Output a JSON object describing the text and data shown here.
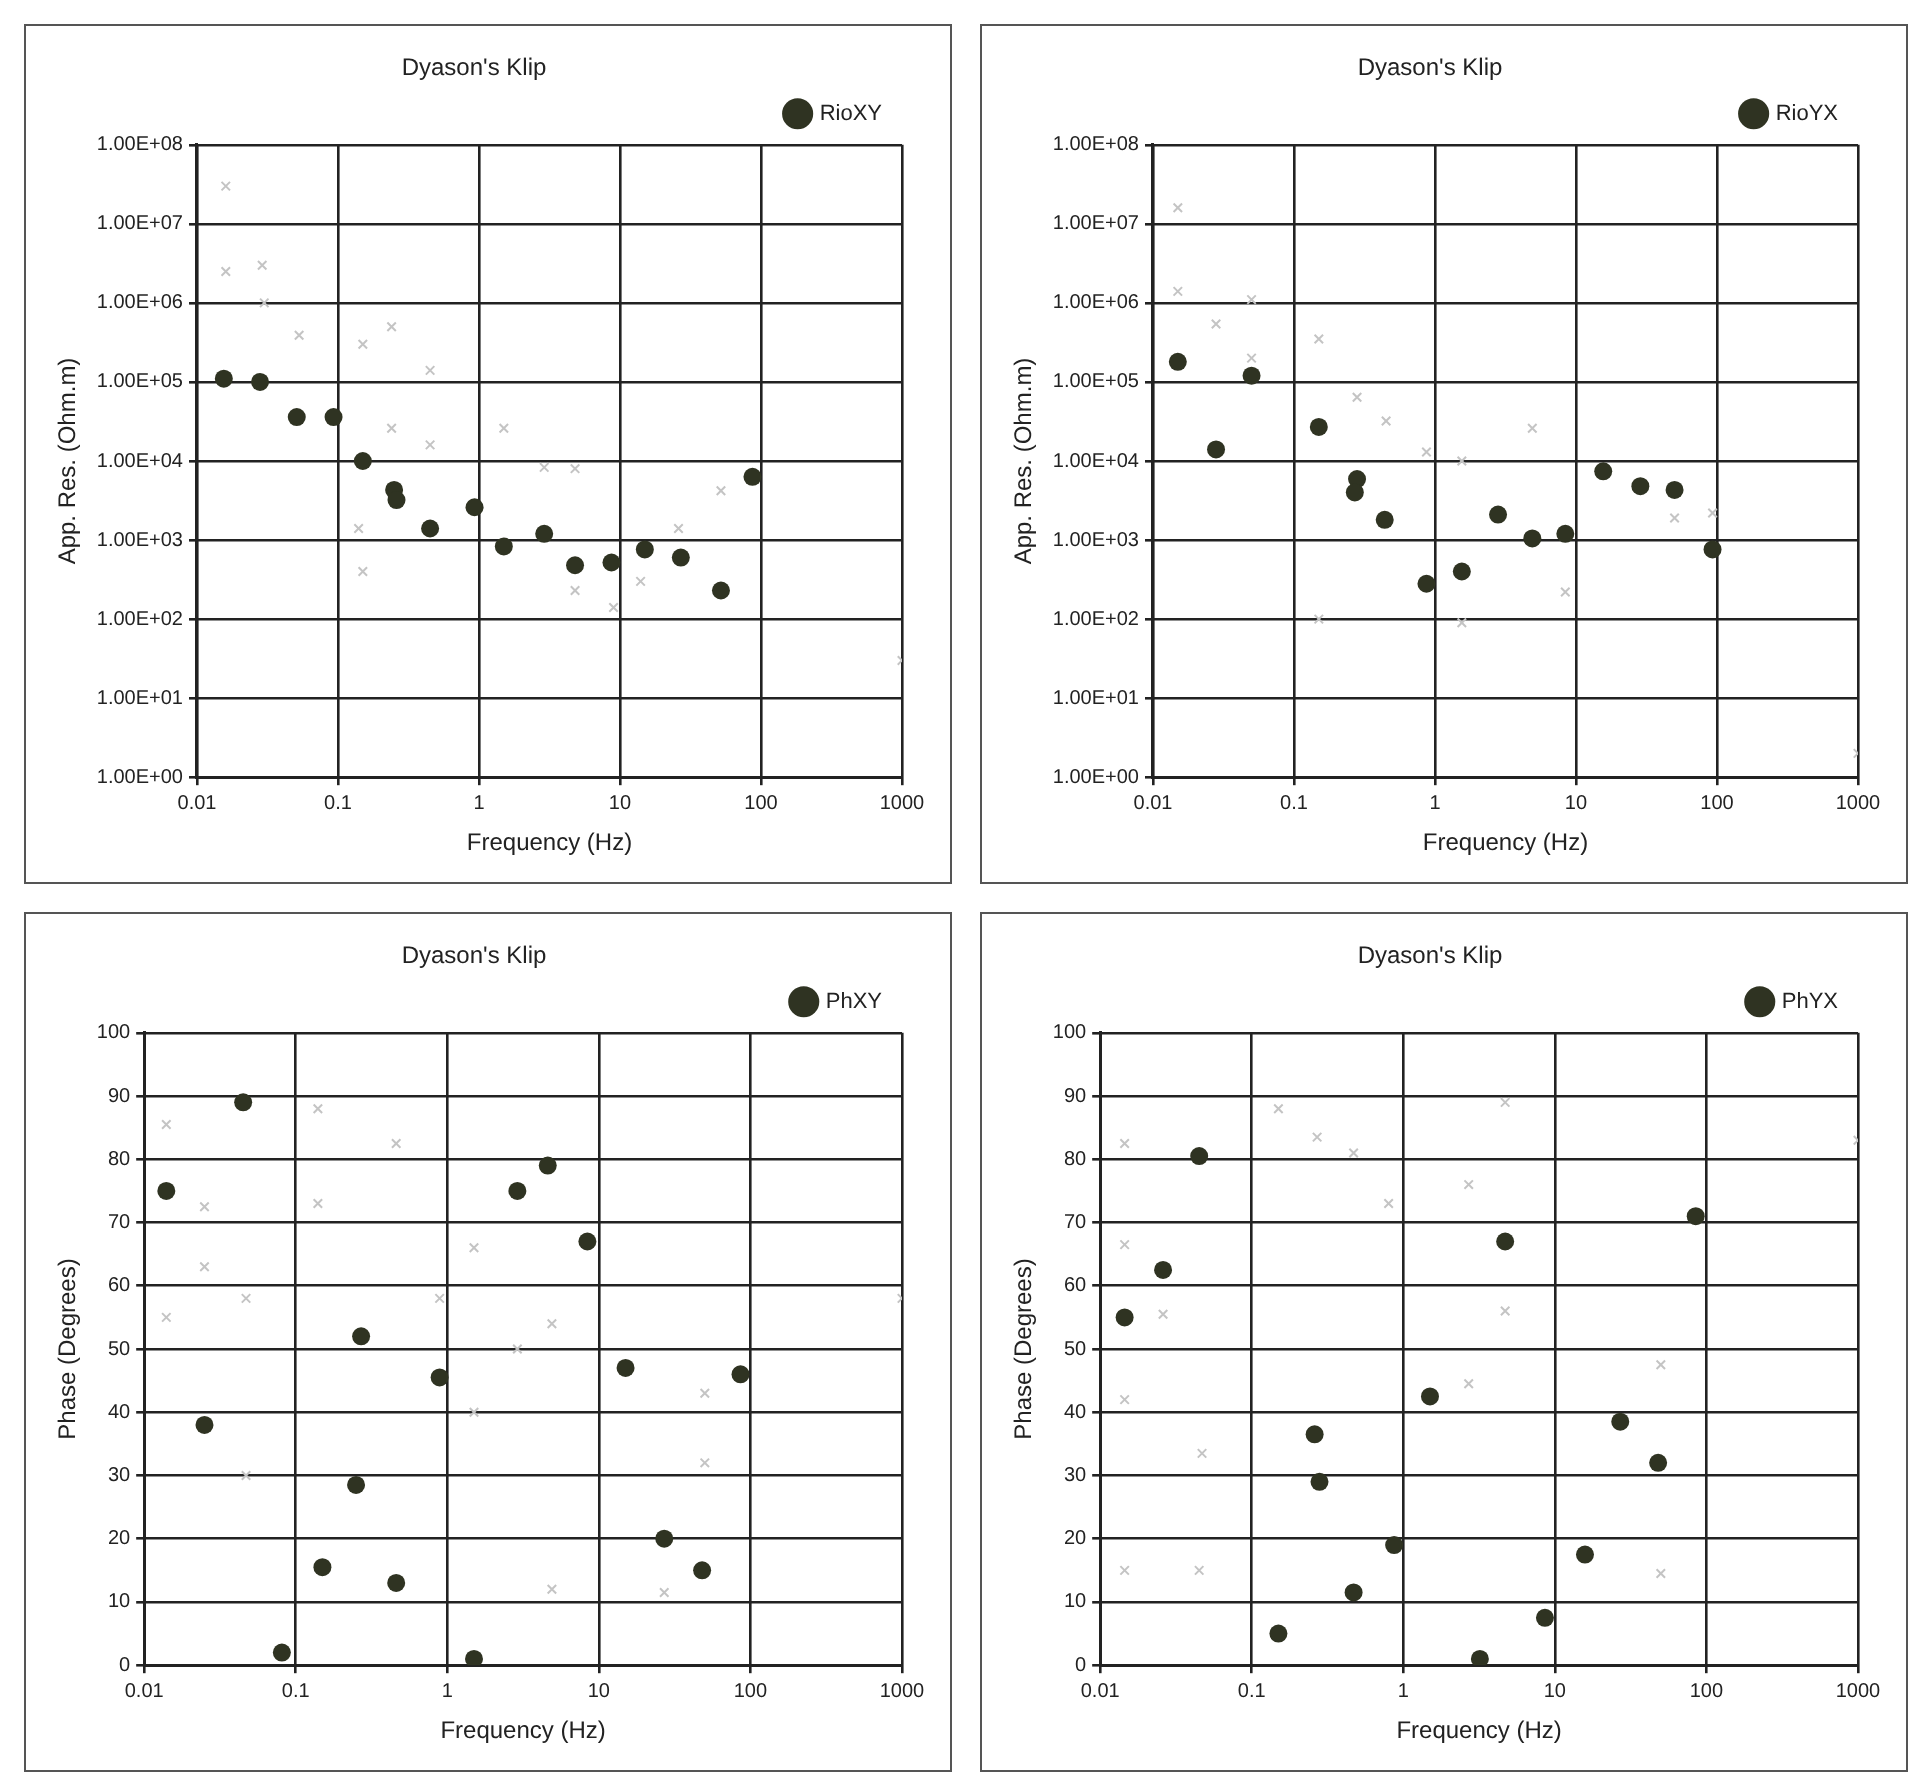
{
  "chart_data": [
    {
      "type": "scatter",
      "title": "Dyason's Klip",
      "xlabel": "Frequency (Hz)",
      "ylabel": "App. Res. (Ohm.m)",
      "log": "xy",
      "grid": true,
      "legend": "top right",
      "xlim": [
        0.01,
        1000
      ],
      "xticks": [
        0.01,
        0.1,
        1,
        10,
        100,
        1000
      ],
      "ylim": [
        1,
        100000000
      ],
      "yticks": [
        {
          "value": 1,
          "label": "1.00E+00"
        },
        {
          "value": 10,
          "label": "1.00E+01"
        },
        {
          "value": 100,
          "label": "1.00E+02"
        },
        {
          "value": 1000,
          "label": "1.00E+03"
        },
        {
          "value": 10000,
          "label": "1.00E+04"
        },
        {
          "value": 100000,
          "label": "1.00E+05"
        },
        {
          "value": 1000000,
          "label": "1.00E+06"
        },
        {
          "value": 10000000,
          "label": "1.00E+07"
        },
        {
          "value": 100000000,
          "label": "1.00E+08"
        }
      ],
      "series": [
        {
          "color": "#c4c4c4",
          "marker": "cross",
          "x": [
            0.016,
            0.016,
            0.029,
            0.03,
            0.053,
            0.15,
            0.24,
            0.45,
            0.24,
            0.45,
            1.5,
            2.9,
            4.8,
            0.14,
            0.15,
            4.8,
            9,
            14,
            26,
            52,
            1000
          ],
          "values": [
            30000000,
            2500000,
            3000000,
            1000000,
            390000,
            300000,
            500000,
            140000,
            26000,
            16000,
            26000,
            8300,
            8000,
            1400,
            400,
            230,
            140,
            300,
            1400,
            4200,
            30
          ]
        },
        {
          "name": "RioXY",
          "color": "#2f3322",
          "marker": "circle",
          "x": [
            0.0155,
            0.028,
            0.051,
            0.093,
            0.15,
            0.25,
            0.26,
            0.45,
            0.93,
            1.5,
            2.9,
            4.8,
            8.7,
            15,
            27,
            52,
            87
          ],
          "values": [
            110000,
            100000,
            36000,
            36000,
            10000,
            4300,
            3200,
            1400,
            2600,
            830,
            1200,
            480,
            520,
            760,
            600,
            230,
            6300
          ]
        }
      ]
    },
    {
      "type": "scatter",
      "title": "Dyason's Klip",
      "xlabel": "Frequency (Hz)",
      "ylabel": "App. Res. (Ohm.m)",
      "log": "xy",
      "grid": true,
      "legend": "top right",
      "xlim": [
        0.01,
        1000
      ],
      "xticks": [
        0.01,
        0.1,
        1,
        10,
        100,
        1000
      ],
      "ylim": [
        1,
        100000000
      ],
      "yticks": [
        {
          "value": 1,
          "label": "1.00E+00"
        },
        {
          "value": 10,
          "label": "1.00E+01"
        },
        {
          "value": 100,
          "label": "1.00E+02"
        },
        {
          "value": 1000,
          "label": "1.00E+03"
        },
        {
          "value": 10000,
          "label": "1.00E+04"
        },
        {
          "value": 100000,
          "label": "1.00E+05"
        },
        {
          "value": 1000000,
          "label": "1.00E+06"
        },
        {
          "value": 10000000,
          "label": "1.00E+07"
        },
        {
          "value": 100000000,
          "label": "1.00E+08"
        }
      ],
      "series": [
        {
          "color": "#c4c4c4",
          "marker": "cross",
          "x": [
            0.015,
            0.015,
            0.028,
            0.05,
            0.05,
            0.15,
            0.15,
            0.28,
            0.45,
            0.87,
            1.55,
            1.55,
            4.9,
            8.4,
            50,
            93,
            1000
          ],
          "values": [
            16000000,
            1400000,
            540000,
            1100000,
            200000,
            350000,
            100,
            64000,
            32000,
            13000,
            10000,
            90,
            26000,
            220,
            1900,
            2200,
            2
          ]
        },
        {
          "name": "RioYX",
          "color": "#2f3322",
          "marker": "circle",
          "x": [
            0.015,
            0.028,
            0.05,
            0.15,
            0.28,
            0.27,
            0.44,
            0.87,
            1.55,
            2.8,
            4.9,
            8.4,
            15.6,
            28.6,
            50,
            93
          ],
          "values": [
            180000,
            14000,
            120000,
            27000,
            5900,
            4000,
            1800,
            280,
            400,
            2100,
            1050,
            1200,
            7400,
            4800,
            4300,
            760
          ]
        }
      ]
    },
    {
      "type": "scatter",
      "title": "Dyason's Klip",
      "xlabel": "Frequency (Hz)",
      "ylabel": "Phase (Degrees)",
      "log": "x",
      "grid": true,
      "legend": "top right",
      "xlim": [
        0.01,
        1000
      ],
      "xticks": [
        0.01,
        0.1,
        1,
        10,
        100,
        1000
      ],
      "ylim": [
        0,
        100
      ],
      "yticks": [
        0,
        10,
        20,
        30,
        40,
        50,
        60,
        70,
        80,
        90,
        100
      ],
      "series": [
        {
          "color": "#c4c4c4",
          "marker": "cross",
          "x": [
            0.014,
            0.014,
            0.025,
            0.025,
            0.047,
            0.047,
            0.14,
            0.14,
            0.46,
            0.89,
            1.5,
            2.9,
            4.9,
            4.9,
            50,
            50,
            1000,
            27,
            1.5
          ],
          "values": [
            85.5,
            55,
            72.5,
            63,
            58,
            30,
            88,
            73,
            82.5,
            58,
            66,
            50,
            54,
            12,
            43,
            32,
            58,
            11.5,
            40
          ]
        },
        {
          "name": "PhXY",
          "color": "#2f3322",
          "marker": "circle",
          "x": [
            0.014,
            0.025,
            0.045,
            0.081,
            0.15,
            0.27,
            0.25,
            0.46,
            0.89,
            1.5,
            2.9,
            4.6,
            8.4,
            15,
            27,
            48,
            86
          ],
          "values": [
            75,
            38,
            89,
            2,
            15.5,
            52,
            28.5,
            13,
            45.5,
            1,
            75,
            79,
            67,
            47,
            20,
            15,
            46
          ]
        }
      ]
    },
    {
      "type": "scatter",
      "title": "Dyason's Klip",
      "xlabel": "Frequency (Hz)",
      "ylabel": "Phase (Degrees)",
      "log": "x",
      "grid": true,
      "legend": "top right",
      "xlim": [
        0.01,
        1000
      ],
      "xticks": [
        0.01,
        0.1,
        1,
        10,
        100,
        1000
      ],
      "ylim": [
        0,
        100
      ],
      "yticks": [
        0,
        10,
        20,
        30,
        40,
        50,
        60,
        70,
        80,
        90,
        100
      ],
      "series": [
        {
          "color": "#c4c4c4",
          "marker": "cross",
          "x": [
            0.0145,
            0.0145,
            0.0145,
            0.026,
            0.047,
            0.15,
            0.27,
            0.47,
            0.8,
            2.7,
            4.7,
            4.7,
            50,
            50,
            1000,
            2.7,
            0.0145,
            0.045
          ],
          "values": [
            82.5,
            66.5,
            42,
            55.5,
            33.5,
            88,
            83.5,
            81,
            73,
            76,
            89,
            56,
            47.5,
            14.5,
            83,
            44.5,
            15,
            15
          ]
        },
        {
          "name": "PhYX",
          "color": "#2f3322",
          "marker": "circle",
          "x": [
            0.0145,
            0.026,
            0.045,
            0.15,
            0.26,
            0.28,
            0.47,
            0.87,
            1.5,
            3.2,
            4.7,
            8.6,
            15.8,
            27,
            48,
            85
          ],
          "values": [
            55,
            62.5,
            80.5,
            5,
            36.5,
            29,
            11.5,
            19,
            42.5,
            1,
            67,
            7.5,
            17.5,
            38.5,
            32,
            71
          ]
        }
      ]
    }
  ]
}
